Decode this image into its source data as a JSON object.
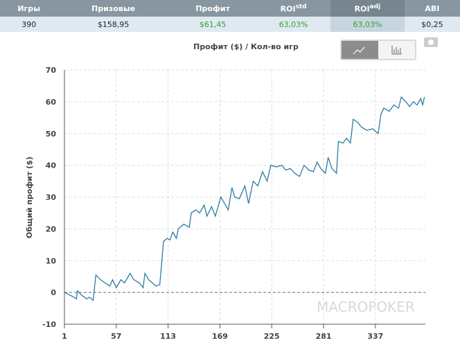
{
  "stats_table": {
    "headers": [
      {
        "text": "Игры"
      },
      {
        "text": "Призовые"
      },
      {
        "text": "Профит"
      },
      {
        "text": "ROI",
        "sup": "std"
      },
      {
        "text": "ROI",
        "sup": "adj"
      },
      {
        "text": "ABI"
      }
    ],
    "row": [
      "390",
      "$158,95",
      "$61,45",
      "63,03%",
      "63,03%",
      "$0,25"
    ]
  },
  "chart_data": {
    "type": "line",
    "title": "Профит ($) / Кол-во игр",
    "y_label": "Общий профит ($)",
    "watermark": "MACROPOKER",
    "x": [
      1,
      8,
      14,
      15,
      20,
      25,
      28,
      32,
      35,
      40,
      45,
      50,
      53,
      57,
      62,
      66,
      72,
      76,
      82,
      86,
      88,
      92,
      96,
      100,
      104,
      106,
      108,
      112,
      115,
      118,
      122,
      124,
      130,
      136,
      138,
      143,
      147,
      152,
      155,
      160,
      164,
      170,
      174,
      178,
      182,
      185,
      190,
      196,
      200,
      205,
      210,
      215,
      220,
      224,
      230,
      236,
      240,
      245,
      250,
      255,
      260,
      265,
      270,
      274,
      278,
      283,
      286,
      290,
      295,
      297,
      302,
      306,
      310,
      313,
      318,
      322,
      328,
      334,
      340,
      343,
      346,
      352,
      357,
      362,
      365,
      370,
      374,
      378,
      382,
      386,
      388,
      390
    ],
    "series": [
      {
        "name": "Профит",
        "color": "#2a7ba3",
        "values": [
          0,
          -1,
          -2,
          0.5,
          -1,
          -2,
          -1.5,
          -2.5,
          5.5,
          4,
          3,
          2,
          4,
          1.5,
          4,
          3,
          6,
          4,
          3,
          1.5,
          6,
          4,
          3,
          2,
          2.5,
          9,
          16,
          17,
          16.5,
          19,
          17,
          20,
          21.5,
          20.5,
          25,
          26,
          25,
          27.5,
          24,
          27,
          24,
          30,
          28,
          26,
          33,
          30,
          29.5,
          33.5,
          28,
          35,
          33.5,
          38,
          35,
          40,
          39.5,
          40,
          38.5,
          39,
          37.5,
          36.5,
          40,
          38.5,
          38,
          41,
          39,
          37.5,
          42.5,
          39,
          37.5,
          47.5,
          47,
          48.5,
          47,
          54.5,
          53.5,
          52,
          51,
          51.5,
          50,
          56,
          58,
          57,
          59,
          58,
          61.5,
          60,
          58.5,
          60,
          59,
          61,
          59,
          61.5
        ]
      }
    ],
    "xlim": [
      1,
      391
    ],
    "xticks": [
      1,
      57,
      113,
      169,
      225,
      281,
      337
    ],
    "ylim": [
      -10,
      70
    ],
    "yticks": [
      -10,
      0,
      10,
      20,
      30,
      40,
      50,
      60,
      70
    ],
    "grid": true
  }
}
